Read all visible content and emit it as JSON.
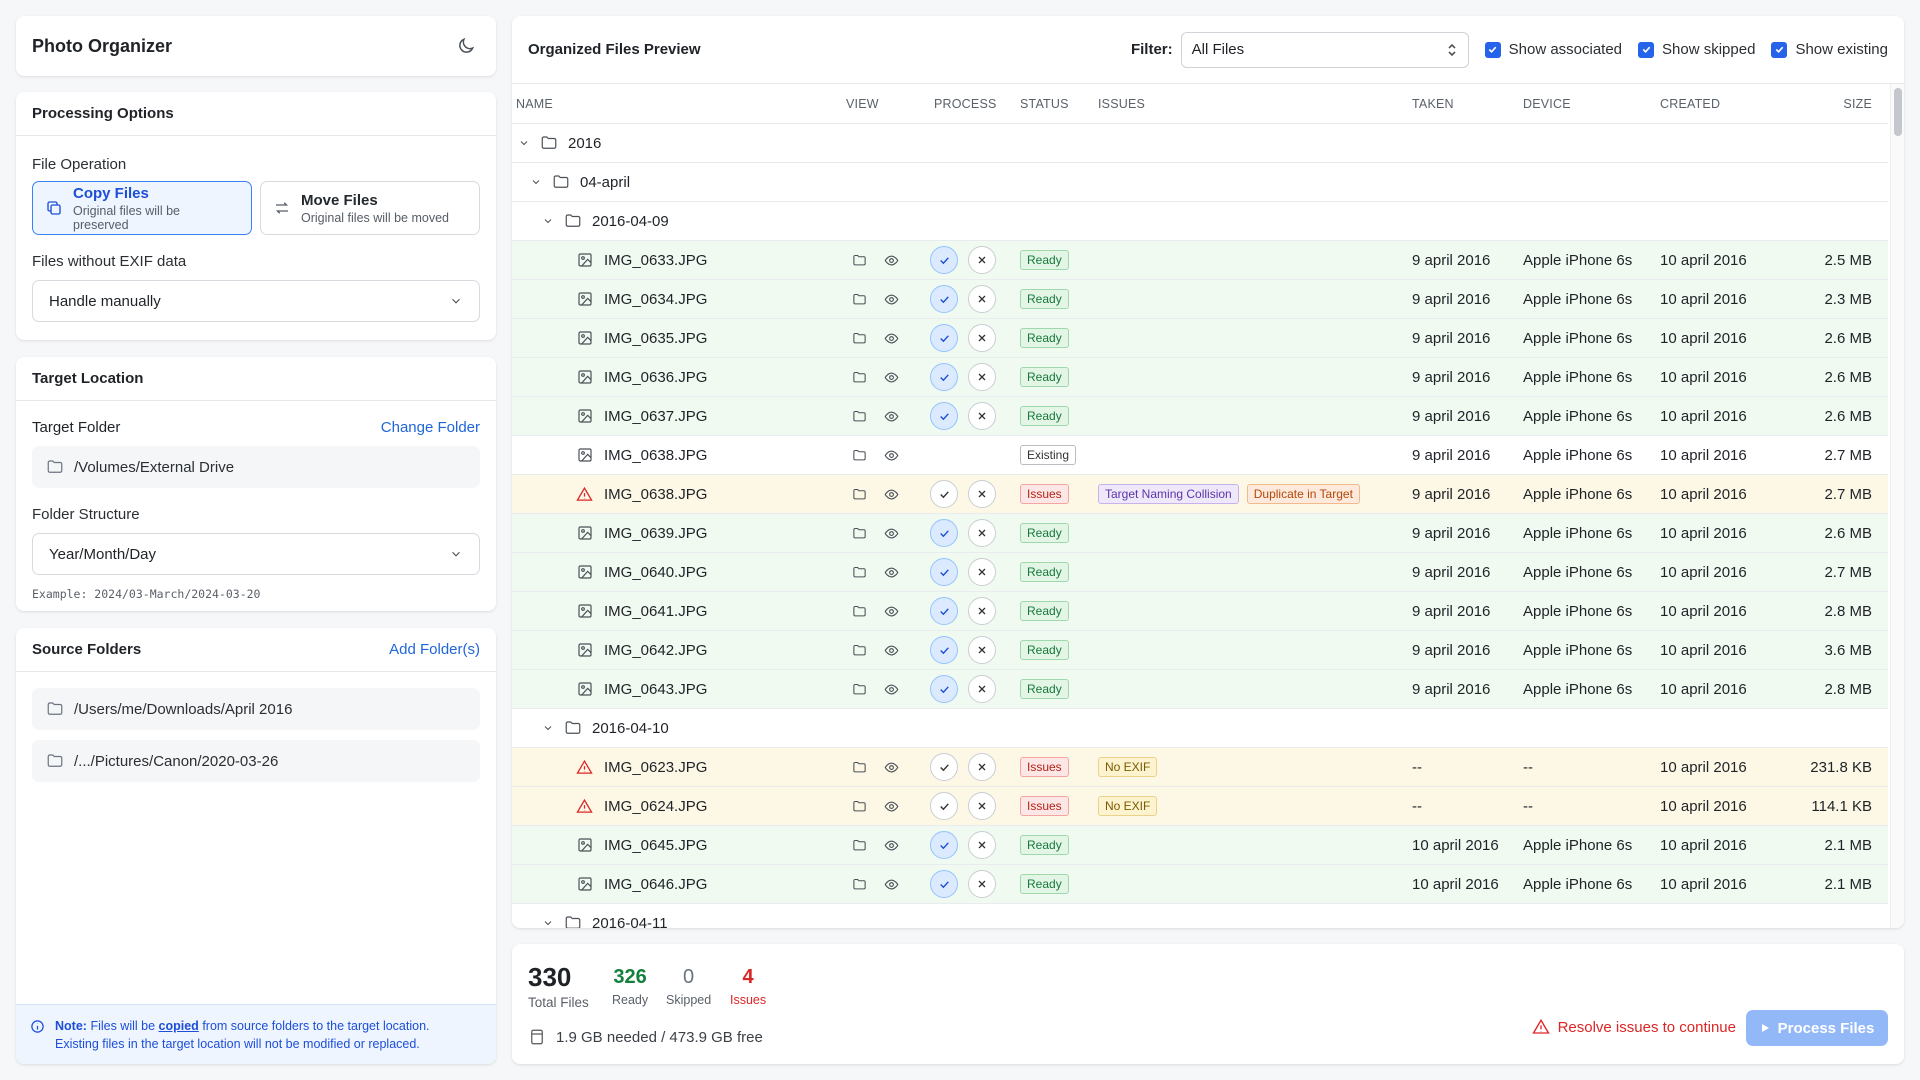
{
  "app": {
    "title": "Photo Organizer"
  },
  "processing": {
    "title": "Processing Options",
    "file_operation_label": "File Operation",
    "copy": {
      "title": "Copy Files",
      "subtitle": "Original files will be preserved"
    },
    "move": {
      "title": "Move Files",
      "subtitle": "Original files will be moved"
    },
    "exif_label": "Files without EXIF data",
    "exif_value": "Handle manually"
  },
  "target": {
    "title": "Target Location",
    "folder_label": "Target Folder",
    "change_link": "Change Folder",
    "folder_path": "/Volumes/External Drive",
    "structure_label": "Folder Structure",
    "structure_value": "Year/Month/Day",
    "example": "Example: 2024/03-March/2024-03-20"
  },
  "sources": {
    "title": "Source Folders",
    "add_link": "Add Folder(s)",
    "folders": [
      "/Users/me/Downloads/April 2016",
      "/.../Pictures/Canon/2020-03-26"
    ]
  },
  "note": {
    "prefix": "Note:",
    "text1": "Files will be",
    "emph": "copied",
    "text2": "from source folders to the target location.",
    "line2": "Existing files in the target location will not be modified or replaced."
  },
  "preview": {
    "title": "Organized Files Preview",
    "filter_label": "Filter:",
    "filter_value": "All Files",
    "checks": [
      "Show associated",
      "Show skipped",
      "Show existing"
    ],
    "columns": [
      "NAME",
      "VIEW",
      "PROCESS",
      "STATUS",
      "ISSUES",
      "TAKEN",
      "DEVICE",
      "CREATED",
      "SIZE"
    ]
  },
  "tree": {
    "year": "2016",
    "month": "04-april",
    "day1": "2016-04-09",
    "day2": "2016-04-10",
    "day3": "2016-04-11"
  },
  "rows_day1": [
    {
      "name": "IMG_0633.JPG",
      "status": "Ready",
      "taken": "9 april 2016",
      "device": "Apple iPhone 6s",
      "created": "10 april 2016",
      "size": "2.5 MB"
    },
    {
      "name": "IMG_0634.JPG",
      "status": "Ready",
      "taken": "9 april 2016",
      "device": "Apple iPhone 6s",
      "created": "10 april 2016",
      "size": "2.3 MB"
    },
    {
      "name": "IMG_0635.JPG",
      "status": "Ready",
      "taken": "9 april 2016",
      "device": "Apple iPhone 6s",
      "created": "10 april 2016",
      "size": "2.6 MB"
    },
    {
      "name": "IMG_0636.JPG",
      "status": "Ready",
      "taken": "9 april 2016",
      "device": "Apple iPhone 6s",
      "created": "10 april 2016",
      "size": "2.6 MB"
    },
    {
      "name": "IMG_0637.JPG",
      "status": "Ready",
      "taken": "9 april 2016",
      "device": "Apple iPhone 6s",
      "created": "10 april 2016",
      "size": "2.6 MB"
    },
    {
      "name": "IMG_0638.JPG",
      "status": "Existing",
      "taken": "9 april 2016",
      "device": "Apple iPhone 6s",
      "created": "10 april 2016",
      "size": "2.7 MB"
    },
    {
      "name": "IMG_0638.JPG",
      "status": "Issues",
      "issues": [
        "Target Naming Collision",
        "Duplicate in Target"
      ],
      "taken": "9 april 2016",
      "device": "Apple iPhone 6s",
      "created": "10 april 2016",
      "size": "2.7 MB"
    },
    {
      "name": "IMG_0639.JPG",
      "status": "Ready",
      "taken": "9 april 2016",
      "device": "Apple iPhone 6s",
      "created": "10 april 2016",
      "size": "2.6 MB"
    },
    {
      "name": "IMG_0640.JPG",
      "status": "Ready",
      "taken": "9 april 2016",
      "device": "Apple iPhone 6s",
      "created": "10 april 2016",
      "size": "2.7 MB"
    },
    {
      "name": "IMG_0641.JPG",
      "status": "Ready",
      "taken": "9 april 2016",
      "device": "Apple iPhone 6s",
      "created": "10 april 2016",
      "size": "2.8 MB"
    },
    {
      "name": "IMG_0642.JPG",
      "status": "Ready",
      "taken": "9 april 2016",
      "device": "Apple iPhone 6s",
      "created": "10 april 2016",
      "size": "3.6 MB"
    },
    {
      "name": "IMG_0643.JPG",
      "status": "Ready",
      "taken": "9 april 2016",
      "device": "Apple iPhone 6s",
      "created": "10 april 2016",
      "size": "2.8 MB"
    }
  ],
  "rows_day2": [
    {
      "name": "IMG_0623.JPG",
      "status": "Issues",
      "issues": [
        "No EXIF"
      ],
      "taken": "--",
      "device": "--",
      "created": "10 april 2016",
      "size": "231.8 KB"
    },
    {
      "name": "IMG_0624.JPG",
      "status": "Issues",
      "issues": [
        "No EXIF"
      ],
      "taken": "--",
      "device": "--",
      "created": "10 april 2016",
      "size": "114.1 KB"
    },
    {
      "name": "IMG_0645.JPG",
      "status": "Ready",
      "taken": "10 april 2016",
      "device": "Apple iPhone 6s",
      "created": "10 april 2016",
      "size": "2.1 MB"
    },
    {
      "name": "IMG_0646.JPG",
      "status": "Ready",
      "taken": "10 april 2016",
      "device": "Apple iPhone 6s",
      "created": "10 april 2016",
      "size": "2.1 MB"
    }
  ],
  "summary": {
    "total": "330",
    "total_label": "Total Files",
    "ready": "326",
    "ready_label": "Ready",
    "skipped": "0",
    "skipped_label": "Skipped",
    "issues": "4",
    "issues_label": "Issues",
    "storage": "1.9 GB needed / 473.9 GB free",
    "warning": "Resolve issues to continue",
    "process_button": "Process Files"
  }
}
